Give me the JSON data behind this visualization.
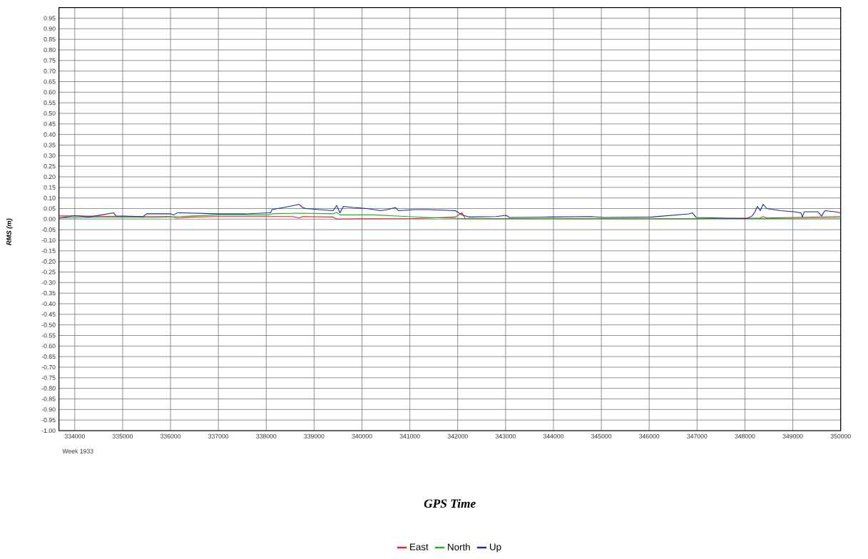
{
  "chart_data": {
    "type": "line",
    "xlabel": "GPS Time",
    "ylabel": "RMS (m)",
    "annotations": [
      "Week 1933"
    ],
    "xlim": [
      333670,
      350000
    ],
    "ylim": [
      -1.0,
      1.0
    ],
    "xticks": [
      334000,
      335000,
      336000,
      337000,
      338000,
      339000,
      340000,
      341000,
      342000,
      343000,
      344000,
      345000,
      346000,
      347000,
      348000,
      349000,
      350000
    ],
    "yticks": [
      {
        "value": -1.0,
        "label": "-1.00"
      },
      {
        "value": -0.95,
        "label": "-0.95"
      },
      {
        "value": -0.9,
        "label": "-0.90"
      },
      {
        "value": -0.85,
        "label": "-0.85"
      },
      {
        "value": -0.8,
        "label": "-0.80"
      },
      {
        "value": -0.75,
        "label": "-0.75"
      },
      {
        "value": -0.7,
        "label": "-0.70"
      },
      {
        "value": -0.65,
        "label": "-0.65"
      },
      {
        "value": -0.6,
        "label": "-0.60"
      },
      {
        "value": -0.55,
        "label": "-0.55"
      },
      {
        "value": -0.5,
        "label": "-0.50"
      },
      {
        "value": -0.45,
        "label": "-0.45"
      },
      {
        "value": -0.4,
        "label": "-0.40"
      },
      {
        "value": -0.35,
        "label": "-0.35"
      },
      {
        "value": -0.3,
        "label": "-0.30"
      },
      {
        "value": -0.25,
        "label": "-0.25"
      },
      {
        "value": -0.2,
        "label": "-0.20"
      },
      {
        "value": -0.15,
        "label": "-0.15"
      },
      {
        "value": -0.1,
        "label": "-0.10"
      },
      {
        "value": -0.05,
        "label": "-0.05"
      },
      {
        "value": 0.0,
        "label": "0.00"
      },
      {
        "value": 0.05,
        "label": "0.05"
      },
      {
        "value": 0.1,
        "label": "0.10"
      },
      {
        "value": 0.15,
        "label": "0.15"
      },
      {
        "value": 0.2,
        "label": "0.20"
      },
      {
        "value": 0.25,
        "label": "0.25"
      },
      {
        "value": 0.3,
        "label": "0.30"
      },
      {
        "value": 0.35,
        "label": "0.35"
      },
      {
        "value": 0.4,
        "label": "0.40"
      },
      {
        "value": 0.45,
        "label": "0.45"
      },
      {
        "value": 0.5,
        "label": "0.50"
      },
      {
        "value": 0.55,
        "label": "0.55"
      },
      {
        "value": 0.6,
        "label": "0.60"
      },
      {
        "value": 0.65,
        "label": "0.65"
      },
      {
        "value": 0.7,
        "label": "0.70"
      },
      {
        "value": 0.75,
        "label": "0.75"
      },
      {
        "value": 0.8,
        "label": "0.80"
      },
      {
        "value": 0.85,
        "label": "0.85"
      },
      {
        "value": 0.9,
        "label": "0.90"
      },
      {
        "value": 0.95,
        "label": "0.95"
      }
    ],
    "grid": true,
    "legend": "bottom",
    "marker": "none",
    "line_style": "solid",
    "series": [
      {
        "name": "East",
        "color": "#e0202a",
        "x": [
          333670,
          334000,
          335000,
          335990,
          336140,
          336420,
          336990,
          338550,
          338690,
          338760,
          339400,
          339470,
          339960,
          341100,
          341950,
          342090,
          342160,
          344210,
          347040,
          348320,
          348380,
          348460,
          350000
        ],
        "values": [
          0.015,
          0.015,
          0.012,
          0.012,
          0.005,
          0.01,
          0.012,
          0.012,
          0.005,
          0.012,
          0.01,
          0.0,
          0.002,
          0.003,
          0.01,
          0.03,
          0.002,
          0.002,
          0.002,
          0.005,
          0.012,
          0.005,
          0.012
        ]
      },
      {
        "name": "North",
        "color": "#22b022",
        "x": [
          333670,
          334300,
          335710,
          336990,
          338050,
          338120,
          338690,
          339400,
          339470,
          339540,
          340250,
          340960,
          341380,
          342090,
          342800,
          345630,
          348460,
          350000
        ],
        "values": [
          0.005,
          0.008,
          0.008,
          0.02,
          0.02,
          0.025,
          0.028,
          0.025,
          0.032,
          0.02,
          0.02,
          0.012,
          0.008,
          0.003,
          0.003,
          0.002,
          0.003,
          0.005
        ]
      },
      {
        "name": "Up",
        "color": "#1a2a9a",
        "x": [
          333670,
          334000,
          334300,
          334810,
          334860,
          335430,
          335500,
          336000,
          336070,
          336140,
          336990,
          337560,
          338050,
          338090,
          338120,
          338480,
          338690,
          338760,
          338830,
          339400,
          339470,
          339540,
          339610,
          339820,
          340110,
          340390,
          340530,
          340700,
          340760,
          341100,
          341380,
          341950,
          342090,
          342230,
          342800,
          343010,
          343080,
          343930,
          344780,
          345060,
          346050,
          346830,
          346900,
          346980,
          347470,
          348040,
          348150,
          348210,
          348260,
          348320,
          348380,
          348460,
          348750,
          349030,
          349170,
          349200,
          349240,
          349520,
          349600,
          349670,
          349880,
          350000
        ],
        "values": [
          0.005,
          0.016,
          0.01,
          0.03,
          0.015,
          0.012,
          0.025,
          0.025,
          0.02,
          0.03,
          0.025,
          0.025,
          0.03,
          0.03,
          0.045,
          0.06,
          0.07,
          0.055,
          0.05,
          0.04,
          0.065,
          0.03,
          0.06,
          0.055,
          0.05,
          0.04,
          0.045,
          0.055,
          0.04,
          0.045,
          0.045,
          0.04,
          0.02,
          0.01,
          0.012,
          0.018,
          0.008,
          0.01,
          0.012,
          0.008,
          0.01,
          0.025,
          0.03,
          0.008,
          0.005,
          0.003,
          0.015,
          0.035,
          0.06,
          0.04,
          0.07,
          0.05,
          0.04,
          0.035,
          0.03,
          0.01,
          0.035,
          0.035,
          0.015,
          0.04,
          0.035,
          0.03
        ]
      }
    ]
  }
}
